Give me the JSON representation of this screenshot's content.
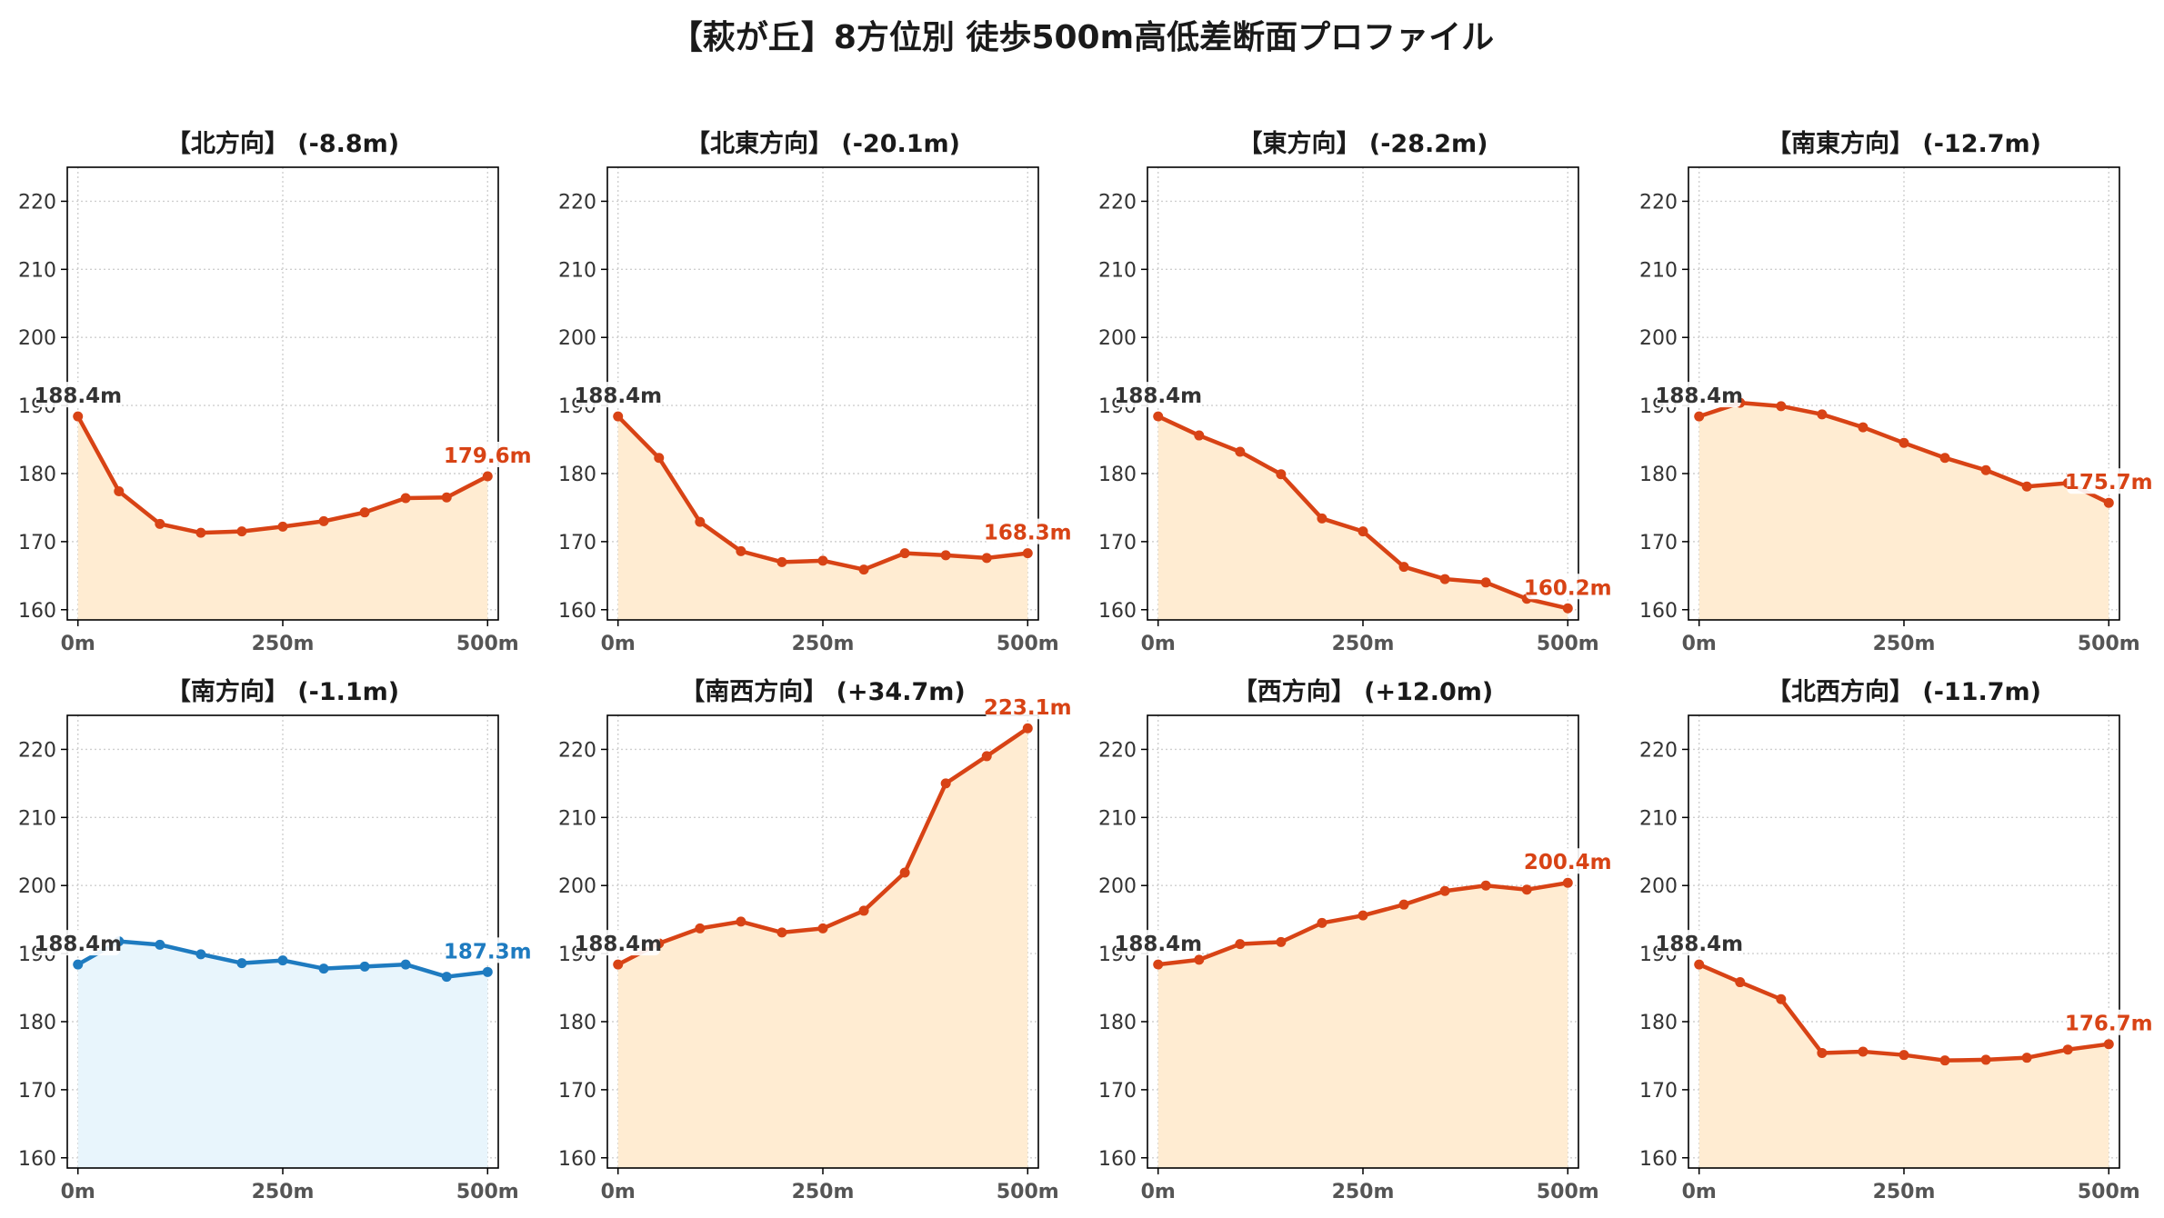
{
  "title": "【萩が丘】8方位別 徒歩500m高低差断面プロファイル",
  "colors": {
    "down": "#d84315",
    "up": "#d84315",
    "flat": "#1e7bc0",
    "fill_warm": "#ffecd2",
    "fill_cool": "#e8f5fc",
    "start_label": "#333333",
    "grid": "#cfcfcf"
  },
  "chart_data": [
    {
      "type": "line",
      "title": "【北方向】 (-8.8m)",
      "x_ticks": [
        "0m",
        "250m",
        "500m"
      ],
      "y_ticks": [
        160,
        170,
        180,
        190,
        200,
        210,
        220
      ],
      "ylim": [
        158.5,
        225
      ],
      "xlim": [
        -13,
        513
      ],
      "x": [
        0,
        50,
        100,
        150,
        200,
        250,
        300,
        350,
        400,
        450,
        500
      ],
      "values": [
        188.4,
        177.4,
        172.6,
        171.3,
        171.5,
        172.2,
        173.0,
        174.3,
        176.4,
        176.5,
        179.6
      ],
      "start_label": "188.4m",
      "end_label": "179.6m",
      "theme": "warm",
      "grid": true
    },
    {
      "type": "line",
      "title": "【北東方向】 (-20.1m)",
      "x_ticks": [
        "0m",
        "250m",
        "500m"
      ],
      "y_ticks": [
        160,
        170,
        180,
        190,
        200,
        210,
        220
      ],
      "ylim": [
        158.5,
        225
      ],
      "xlim": [
        -13,
        513
      ],
      "x": [
        0,
        50,
        100,
        150,
        200,
        250,
        300,
        350,
        400,
        450,
        500
      ],
      "values": [
        188.4,
        182.3,
        172.9,
        168.6,
        167.0,
        167.2,
        165.9,
        168.3,
        168.0,
        167.6,
        168.3
      ],
      "start_label": "188.4m",
      "end_label": "168.3m",
      "theme": "warm",
      "grid": true
    },
    {
      "type": "line",
      "title": "【東方向】 (-28.2m)",
      "x_ticks": [
        "0m",
        "250m",
        "500m"
      ],
      "y_ticks": [
        160,
        170,
        180,
        190,
        200,
        210,
        220
      ],
      "ylim": [
        158.5,
        225
      ],
      "xlim": [
        -13,
        513
      ],
      "x": [
        0,
        50,
        100,
        150,
        200,
        250,
        300,
        350,
        400,
        450,
        500
      ],
      "values": [
        188.4,
        185.6,
        183.2,
        179.9,
        173.4,
        171.5,
        166.3,
        164.5,
        164.0,
        161.6,
        160.2
      ],
      "start_label": "188.4m",
      "end_label": "160.2m",
      "theme": "warm",
      "grid": true
    },
    {
      "type": "line",
      "title": "【南東方向】 (-12.7m)",
      "x_ticks": [
        "0m",
        "250m",
        "500m"
      ],
      "y_ticks": [
        160,
        170,
        180,
        190,
        200,
        210,
        220
      ],
      "ylim": [
        158.5,
        225
      ],
      "xlim": [
        -13,
        513
      ],
      "x": [
        0,
        50,
        100,
        150,
        200,
        250,
        300,
        350,
        400,
        450,
        500
      ],
      "values": [
        188.4,
        190.4,
        189.9,
        188.7,
        186.8,
        184.5,
        182.3,
        180.5,
        178.1,
        178.6,
        175.7
      ],
      "start_label": "188.4m",
      "end_label": "175.7m",
      "theme": "warm",
      "grid": true
    },
    {
      "type": "line",
      "title": "【南方向】 (-1.1m)",
      "x_ticks": [
        "0m",
        "250m",
        "500m"
      ],
      "y_ticks": [
        160,
        170,
        180,
        190,
        200,
        210,
        220
      ],
      "ylim": [
        158.5,
        225
      ],
      "xlim": [
        -13,
        513
      ],
      "x": [
        0,
        50,
        100,
        150,
        200,
        250,
        300,
        350,
        400,
        450,
        500
      ],
      "values": [
        188.4,
        191.8,
        191.3,
        189.9,
        188.6,
        189.0,
        187.8,
        188.1,
        188.4,
        186.6,
        187.3
      ],
      "start_label": "188.4m",
      "end_label": "187.3m",
      "theme": "cool",
      "grid": true
    },
    {
      "type": "line",
      "title": "【南西方向】 (+34.7m)",
      "x_ticks": [
        "0m",
        "250m",
        "500m"
      ],
      "y_ticks": [
        160,
        170,
        180,
        190,
        200,
        210,
        220
      ],
      "ylim": [
        158.5,
        225
      ],
      "xlim": [
        -13,
        513
      ],
      "x": [
        0,
        50,
        100,
        150,
        200,
        250,
        300,
        350,
        400,
        450,
        500
      ],
      "values": [
        188.4,
        191.5,
        193.7,
        194.7,
        193.1,
        193.7,
        196.3,
        201.9,
        215.0,
        219.0,
        223.1
      ],
      "start_label": "188.4m",
      "end_label": "223.1m",
      "theme": "warm",
      "grid": true
    },
    {
      "type": "line",
      "title": "【西方向】 (+12.0m)",
      "x_ticks": [
        "0m",
        "250m",
        "500m"
      ],
      "y_ticks": [
        160,
        170,
        180,
        190,
        200,
        210,
        220
      ],
      "ylim": [
        158.5,
        225
      ],
      "xlim": [
        -13,
        513
      ],
      "x": [
        0,
        50,
        100,
        150,
        200,
        250,
        300,
        350,
        400,
        450,
        500
      ],
      "values": [
        188.4,
        189.1,
        191.4,
        191.7,
        194.5,
        195.6,
        197.2,
        199.2,
        200.0,
        199.4,
        200.4
      ],
      "start_label": "188.4m",
      "end_label": "200.4m",
      "theme": "warm",
      "grid": true
    },
    {
      "type": "line",
      "title": "【北西方向】 (-11.7m)",
      "x_ticks": [
        "0m",
        "250m",
        "500m"
      ],
      "y_ticks": [
        160,
        170,
        180,
        190,
        200,
        210,
        220
      ],
      "ylim": [
        158.5,
        225
      ],
      "xlim": [
        -13,
        513
      ],
      "x": [
        0,
        50,
        100,
        150,
        200,
        250,
        300,
        350,
        400,
        450,
        500
      ],
      "values": [
        188.4,
        185.8,
        183.3,
        175.4,
        175.6,
        175.1,
        174.3,
        174.4,
        174.7,
        175.9,
        176.7
      ],
      "start_label": "188.4m",
      "end_label": "176.7m",
      "theme": "warm",
      "grid": true
    }
  ]
}
